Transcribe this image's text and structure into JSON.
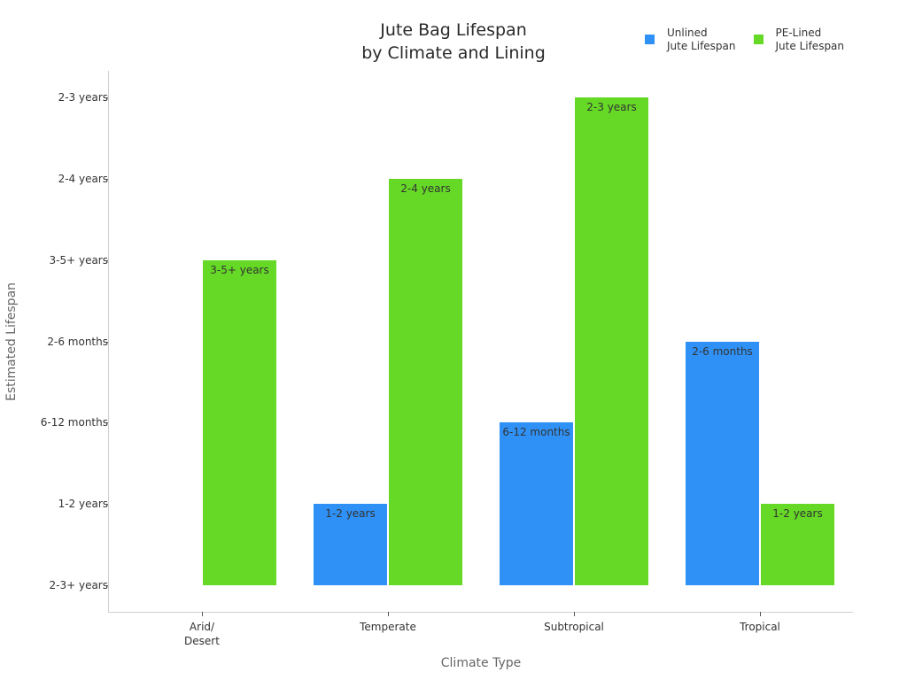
{
  "chart_data": {
    "type": "bar",
    "title": "Jute Bag Lifespan\nby Climate and Lining",
    "title_lines": [
      "Jute Bag Lifespan",
      "by Climate and Lining"
    ],
    "xlabel": "Climate Type",
    "ylabel": "Estimated Lifespan",
    "categories": [
      "Arid/\nDesert",
      "Temperate",
      "Subtropical",
      "Tropical"
    ],
    "y_tick_labels_bottom_to_top": [
      "2-3+ years",
      "1-2 years",
      "6-12 months",
      "2-6 months",
      "3-5+ years",
      "2-4 years",
      "2-3 years"
    ],
    "y_axis_kind": "categorical",
    "series": [
      {
        "name": "Unlined\nJute Lifespan",
        "color": "#2f91f6",
        "values": [
          null,
          "1-2 years",
          "6-12 months",
          "2-6 months"
        ],
        "level_index": [
          null,
          1,
          2,
          3
        ]
      },
      {
        "name": "PE-Lined\nJute Lifespan",
        "color": "#66d926",
        "values": [
          "3-5+ years",
          "2-4 years",
          "2-3 years",
          "1-2 years"
        ],
        "level_index": [
          4,
          5,
          6,
          1
        ]
      }
    ],
    "legend_position": "top-right",
    "grid": false
  },
  "legend": [
    {
      "label": "Unlined\nJute Lifespan",
      "color": "#2f91f6"
    },
    {
      "label": "PE-Lined\nJute Lifespan",
      "color": "#66d926"
    }
  ]
}
